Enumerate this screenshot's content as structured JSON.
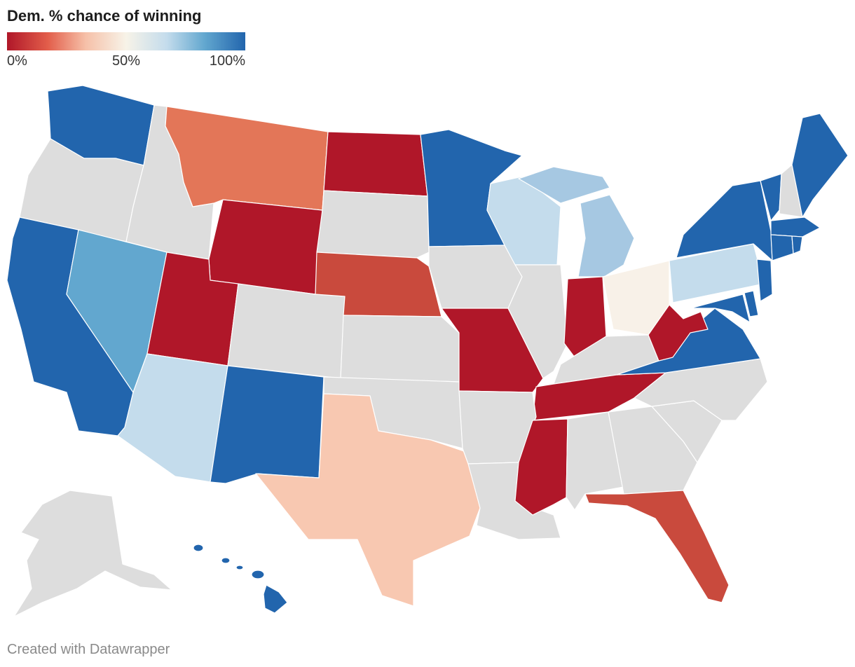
{
  "title": "Dem. % chance of winning",
  "legend": {
    "ticks": [
      "0%",
      "50%",
      "100%"
    ],
    "stops": [
      "#b01729",
      "#e25d4a",
      "#f6c0a8",
      "#f7f3e8",
      "#c4dcec",
      "#62a7cf",
      "#2265ad"
    ]
  },
  "no_data_color": "#dddddd",
  "footer": "Created with Datawrapper",
  "colors": {
    "safe_dem": "#2265ad",
    "likely_dem": "#62a7cf",
    "lean_dem_light": "#a6c8e2",
    "tilt_dem": "#c4dcec",
    "tossup": "#f8f1e8",
    "tilt_rep": "#f8c8b1",
    "lean_rep": "#e37658",
    "likely_rep": "#c94a3d",
    "safe_rep": "#b01729"
  }
}
